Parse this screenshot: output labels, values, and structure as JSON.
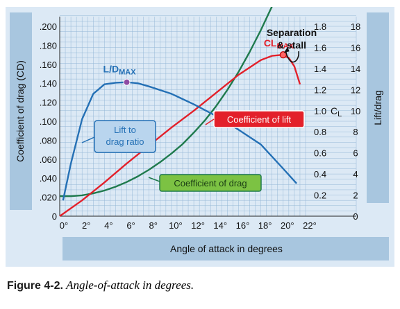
{
  "figure": {
    "label": "Figure 4-2.",
    "caption": "Angle-of-attack in degrees."
  },
  "colors": {
    "background": "#dce9f5",
    "side_band": "#a8c6df",
    "grid": "#7da7cc",
    "frame": "#2f6ea5",
    "drag_curve": "#1f7a4d",
    "lift_curve": "#e3202a",
    "ld_curve": "#2470b5",
    "lift_label_bg": "#e3202a",
    "drag_label_bg": "#7cc243",
    "ld_label_bg": "#b9d5ee",
    "max_marker": "#8e4aa3"
  },
  "chart_data": {
    "type": "line",
    "xlabel": "Angle of attack in degrees",
    "ylabel_left": "Coefficient of drag (CD)",
    "ylabel_right": "Lift/drag",
    "x_ticks": [
      "0°",
      "2°",
      "4°",
      "6°",
      "8°",
      "10°",
      "12°",
      "14°",
      "16°",
      "18°",
      "20°",
      "22°"
    ],
    "left_ticks": [
      "0",
      ".020",
      ".040",
      ".060",
      ".080",
      ".100",
      ".120",
      ".140",
      ".160",
      ".180",
      ".200"
    ],
    "cl_ticks": [
      "0.2",
      "0.4",
      "0.6",
      "0.8",
      "1.0",
      "1.2",
      "1.4",
      "1.6",
      "1.8"
    ],
    "cl_axis_label": "CL",
    "ld_ticks": [
      "0",
      "2",
      "4",
      "6",
      "8",
      "10",
      "12",
      "14",
      "16",
      "18"
    ],
    "xlim": [
      0,
      22
    ],
    "cd_lim": [
      0,
      0.2
    ],
    "cl_lim": [
      0,
      1.8
    ],
    "ld_lim": [
      0,
      18
    ],
    "series": [
      {
        "name": "Coefficient of drag",
        "axis": "cd",
        "color": "#1f7a4d",
        "x": [
          0,
          1,
          2,
          3,
          4,
          5,
          6,
          7,
          8,
          9,
          10,
          11,
          12,
          13,
          14,
          15,
          16,
          17,
          18,
          19,
          20
        ],
        "y": [
          0.021,
          0.021,
          0.022,
          0.024,
          0.027,
          0.031,
          0.036,
          0.042,
          0.049,
          0.057,
          0.066,
          0.076,
          0.088,
          0.101,
          0.116,
          0.133,
          0.152,
          0.173,
          0.196,
          0.221,
          0.248
        ]
      },
      {
        "name": "Coefficient of lift",
        "axis": "cl",
        "color": "#e3202a",
        "x": [
          0,
          2,
          4,
          6,
          8,
          10,
          12,
          14,
          16,
          18,
          19,
          20,
          20.5,
          21,
          21.5
        ],
        "y": [
          0.0,
          0.15,
          0.32,
          0.5,
          0.67,
          0.84,
          1.0,
          1.17,
          1.34,
          1.48,
          1.52,
          1.53,
          1.5,
          1.42,
          1.25
        ]
      },
      {
        "name": "Lift to drag ratio",
        "axis": "ld",
        "color": "#2470b5",
        "x": [
          0.3,
          1,
          2,
          3,
          4,
          5,
          6,
          7,
          8,
          10,
          12,
          14,
          16,
          18,
          20,
          21.2
        ],
        "y": [
          1.5,
          5.0,
          9.2,
          11.6,
          12.5,
          12.65,
          12.7,
          12.6,
          12.3,
          11.6,
          10.6,
          9.5,
          8.2,
          6.8,
          4.5,
          3.1
        ]
      }
    ],
    "annotations": [
      {
        "text": "Lift to\ndrag ratio",
        "series": "Lift to drag ratio"
      },
      {
        "text": "Coefficient of lift",
        "series": "Coefficient of lift"
      },
      {
        "text": "Coefficient of drag",
        "series": "Coefficient of drag"
      },
      {
        "text": "Separation\n& stall",
        "x": 20,
        "cl": 1.53
      }
    ],
    "max_points": [
      {
        "label_main": "L/D",
        "label_sub": "MAX",
        "x": 6,
        "ld": 12.7
      },
      {
        "label_main": "CL",
        "label_sub": "MAX",
        "x": 20,
        "cl": 1.53
      }
    ],
    "grid": true
  }
}
